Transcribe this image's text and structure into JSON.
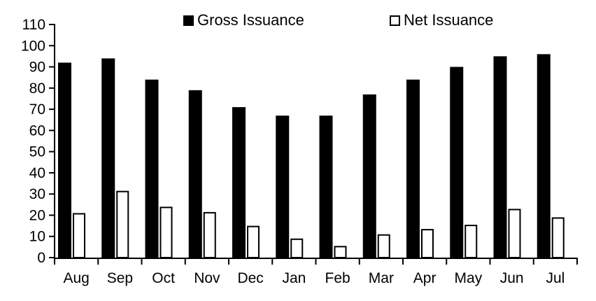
{
  "chart_data": {
    "type": "bar",
    "categories": [
      "Aug",
      "Sep",
      "Oct",
      "Nov",
      "Dec",
      "Jan",
      "Feb",
      "Mar",
      "Apr",
      "May",
      "Jun",
      "Jul"
    ],
    "series": [
      {
        "name": "Gross Issuance",
        "fill": "#000000",
        "stroke": "#000000",
        "values": [
          92,
          94,
          84,
          79,
          71,
          67,
          67,
          77,
          84,
          90,
          95,
          96
        ]
      },
      {
        "name": "Net Issuance",
        "fill": "#ffffff",
        "stroke": "#000000",
        "values": [
          21,
          31.5,
          24,
          21.5,
          15,
          9,
          5.5,
          11,
          13.5,
          15.5,
          23,
          19
        ]
      }
    ],
    "title": "",
    "xlabel": "",
    "ylabel": "",
    "ylim": [
      0,
      110
    ],
    "ytick_step": 10,
    "ytick_labels": [
      "0",
      "10",
      "20",
      "30",
      "40",
      "50",
      "60",
      "70",
      "80",
      "90",
      "100",
      "110"
    ],
    "grid": false,
    "legend_position": "top",
    "axis_color": "#000000",
    "background_color": "#ffffff"
  }
}
